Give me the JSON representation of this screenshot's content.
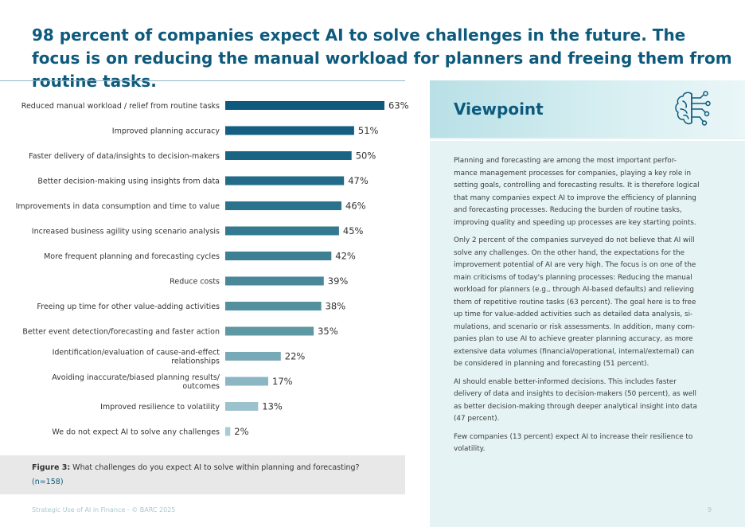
{
  "headline": "98 percent of companies expect AI to solve challenges in the future. The focus is on reducing the manual workload for planners and freeing them from routine tasks.",
  "chart_data": {
    "type": "bar",
    "orientation": "horizontal",
    "categories": [
      [
        "Reduced manual workload / relief from routine tasks"
      ],
      [
        "Improved planning accuracy"
      ],
      [
        "Faster delivery of data/insights to decision-makers"
      ],
      [
        "Better decision-making using insights from data"
      ],
      [
        "Improvements in data consumption and time to value"
      ],
      [
        "Increased business agility using scenario analysis"
      ],
      [
        "More frequent planning and forecasting cycles"
      ],
      [
        "Reduce costs"
      ],
      [
        "Freeing up time for other value-adding activities"
      ],
      [
        "Better event detection/forecasting and faster action"
      ],
      [
        "Identification/evaluation of cause-and-effect",
        "relationships"
      ],
      [
        "Avoiding inaccurate/biased planning results/",
        "outcomes"
      ],
      [
        "Improved resilience to volatility"
      ],
      [
        "We do not expect AI to solve any challenges"
      ]
    ],
    "values": [
      63,
      51,
      50,
      47,
      46,
      45,
      42,
      39,
      38,
      35,
      22,
      17,
      13,
      2
    ],
    "value_labels": [
      "63%",
      "51%",
      "50%",
      "47%",
      "46%",
      "45%",
      "42%",
      "39%",
      "38%",
      "35%",
      "22%",
      "17%",
      "13%",
      "2%"
    ],
    "unit": "%",
    "bar_colors": [
      "#0e5a7d",
      "#135e81",
      "#196483",
      "#236c89",
      "#2b728d",
      "#337990",
      "#3d8094",
      "#488898",
      "#52909d",
      "#5e98a3",
      "#78a9b6",
      "#8bb6c3",
      "#9cc2cd",
      "#a8cbd5"
    ],
    "xlim": [
      0,
      100
    ],
    "grid": false,
    "legend": "none"
  },
  "caption": {
    "label": "Figure 3:",
    "text": " What challenges do you expect AI to solve within planning and forecasting?",
    "n": "(n=158)"
  },
  "viewpoint": {
    "title": "Viewpoint",
    "icon": "brain-circuit-icon",
    "paragraphs": [
      [
        "Planning and forecasting are among the most important perfor-",
        "mance management processes for companies, playing a key role in",
        "setting goals, controlling and forecasting results. It is therefore logical",
        "that many companies expect AI to improve the efficiency of planning",
        "and forecasting processes. Reducing the burden of routine tasks,",
        "improving quality and speeding up processes are key starting points."
      ],
      [
        "Only 2 percent of the companies surveyed do not believe that AI will",
        "solve any challenges. On the other hand, the expectations for the",
        "improvement potential of AI are very high. The focus is on one of the",
        "main criticisms of today's planning processes: Reducing the manual",
        "workload for planners (e.g., through AI-based defaults) and relieving",
        "them of repetitive routine tasks (63 percent). The goal here is to free",
        "up time for value-added activities such as detailed data analysis, si-",
        "mulations, and scenario or risk assessments. In addition, many com-",
        "panies plan to use AI to achieve greater planning accuracy, as more",
        "extensive data volumes (financial/operational, internal/external) can",
        "be considered in planning and forecasting (51 percent)."
      ],
      [
        "AI should enable better-informed decisions. This includes faster",
        "delivery of data and insights to decision-makers (50 percent), as well",
        "as better decision-making through deeper analytical insight into data",
        "(47 percent)."
      ],
      [
        "Few companies (13 percent) expect AI to increase their resilience to",
        "volatility."
      ]
    ]
  },
  "footer": {
    "source": "Strategic Use of AI in Finance - © BARC 2025",
    "page": "9"
  },
  "colors": {
    "accent": "#0e5a7d",
    "panel_bg": "#e5f3f4",
    "caption_bg": "#e8e8e8"
  }
}
